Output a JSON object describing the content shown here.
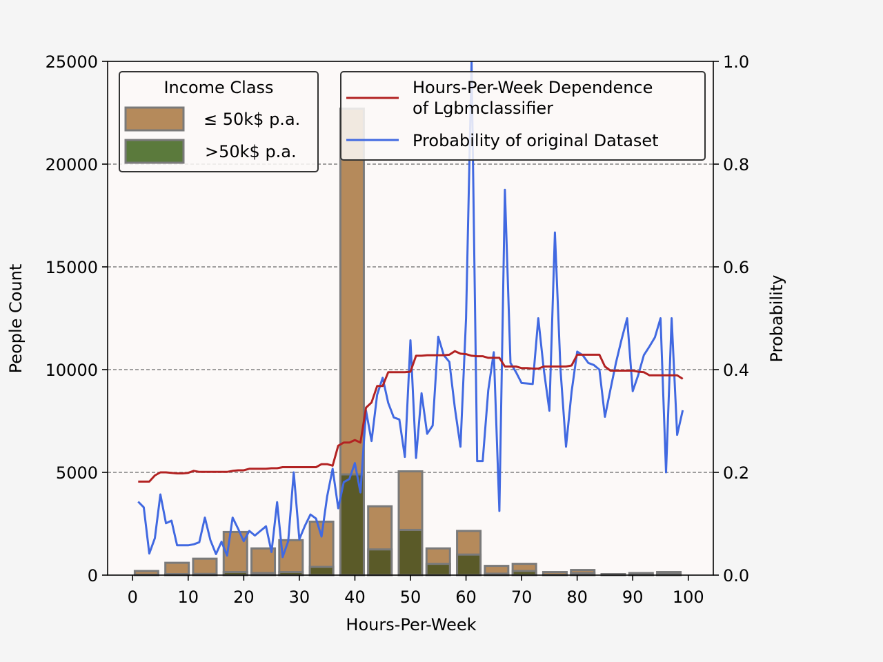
{
  "chart_data": {
    "type": "bar",
    "xlabel": "Hours-Per-Week",
    "ylabel": "People Count",
    "y2label": "Probability",
    "xlim": [
      -4.5,
      104.5
    ],
    "ylim": [
      0,
      25000
    ],
    "y2lim": [
      0,
      1.0
    ],
    "xticks": [
      0,
      10,
      20,
      30,
      40,
      50,
      60,
      70,
      80,
      90,
      100
    ],
    "yticks": [
      0,
      5000,
      10000,
      15000,
      20000,
      25000
    ],
    "y2ticks": [
      "0.0",
      "0.2",
      "0.4",
      "0.6",
      "0.8",
      "1.0"
    ],
    "grid": "horizontal dashed",
    "colors": {
      "le50k": "#b58a5b",
      "gt50k": "#5b7a3c",
      "overlap": "#5a5a28",
      "bar_edge": "#7a7a7a",
      "dependence_line": "#b22222",
      "probability_line": "#4169e1",
      "plot_bg": "#fcf9f8",
      "figure_bg": "#f5f5f5"
    },
    "bar_series": {
      "legend_title": "Income Class",
      "bin_centers": [
        2.5,
        8,
        13,
        18.5,
        23.5,
        28.5,
        34,
        39.5,
        44.5,
        50,
        55,
        60.5,
        65.5,
        70.5,
        76,
        81,
        86.5,
        91.5,
        96.5
      ],
      "series": [
        {
          "name": "≤ 50k$ p.a.",
          "values": [
            200,
            600,
            800,
            2100,
            1300,
            1700,
            2600,
            22700,
            3350,
            5050,
            1300,
            2150,
            450,
            550,
            150,
            250,
            50,
            100,
            150
          ]
        },
        {
          "name": ">50k$ p.a.",
          "values": [
            20,
            50,
            60,
            150,
            100,
            150,
            400,
            4900,
            1250,
            2200,
            550,
            1000,
            70,
            200,
            20,
            100,
            10,
            20,
            50
          ]
        }
      ]
    },
    "line_series": [
      {
        "name": "Hours-Per-Week Dependence\nof Lgbmclassifier",
        "x": [
          1,
          3,
          4,
          5,
          6,
          7,
          8,
          9,
          10,
          11,
          12,
          13,
          14,
          15,
          16,
          17,
          18,
          19,
          20,
          21,
          22,
          23,
          24,
          25,
          26,
          27,
          28,
          29,
          30,
          31,
          32,
          33,
          34,
          35,
          36,
          37,
          38,
          39,
          40,
          41,
          42,
          43,
          44,
          45,
          46,
          47,
          48,
          49,
          50,
          51,
          52,
          53,
          54,
          55,
          56,
          57,
          58,
          59,
          60,
          61,
          62,
          63,
          64,
          65,
          66,
          67,
          68,
          69,
          70,
          71,
          72,
          73,
          74,
          75,
          76,
          77,
          78,
          79,
          80,
          81,
          82,
          83,
          84,
          85,
          86,
          87,
          88,
          89,
          90,
          91,
          92,
          93,
          94,
          95,
          96,
          97,
          98,
          99
        ],
        "y": [
          0.182,
          0.182,
          0.194,
          0.2,
          0.2,
          0.199,
          0.198,
          0.198,
          0.199,
          0.203,
          0.201,
          0.201,
          0.201,
          0.201,
          0.201,
          0.201,
          0.203,
          0.204,
          0.204,
          0.207,
          0.207,
          0.207,
          0.207,
          0.208,
          0.208,
          0.21,
          0.21,
          0.21,
          0.21,
          0.21,
          0.21,
          0.21,
          0.216,
          0.216,
          0.213,
          0.252,
          0.258,
          0.258,
          0.263,
          0.258,
          0.326,
          0.336,
          0.368,
          0.368,
          0.395,
          0.395,
          0.395,
          0.395,
          0.396,
          0.427,
          0.427,
          0.428,
          0.428,
          0.428,
          0.428,
          0.429,
          0.436,
          0.431,
          0.43,
          0.427,
          0.426,
          0.426,
          0.423,
          0.423,
          0.423,
          0.406,
          0.406,
          0.406,
          0.403,
          0.403,
          0.402,
          0.402,
          0.406,
          0.406,
          0.406,
          0.406,
          0.406,
          0.408,
          0.429,
          0.429,
          0.429,
          0.429,
          0.429,
          0.406,
          0.398,
          0.398,
          0.398,
          0.398,
          0.398,
          0.396,
          0.395,
          0.389,
          0.389,
          0.389,
          0.389,
          0.389,
          0.389,
          0.382
        ]
      },
      {
        "name": "Probability of original Dataset",
        "x": [
          1,
          2,
          3,
          4,
          5,
          6,
          7,
          8,
          9,
          10,
          11,
          12,
          13,
          14,
          15,
          16,
          17,
          18,
          19,
          20,
          21,
          22,
          23,
          24,
          25,
          26,
          27,
          28,
          29,
          30,
          31,
          32,
          33,
          34,
          35,
          36,
          37,
          38,
          39,
          40,
          41,
          42,
          43,
          44,
          45,
          46,
          47,
          48,
          49,
          50,
          51,
          52,
          53,
          54,
          55,
          56,
          57,
          58,
          59,
          60,
          61,
          62,
          63,
          64,
          65,
          66,
          67,
          68,
          69,
          70,
          71,
          72,
          73,
          74,
          75,
          76,
          77,
          78,
          79,
          80,
          81,
          82,
          83,
          84,
          85,
          86,
          87,
          88,
          89,
          90,
          91,
          92,
          93,
          94,
          95,
          96,
          97,
          98,
          99
        ],
        "y": [
          0.143,
          0.132,
          0.042,
          0.072,
          0.157,
          0.101,
          0.106,
          0.058,
          0.058,
          0.058,
          0.06,
          0.064,
          0.112,
          0.068,
          0.041,
          0.065,
          0.038,
          0.112,
          0.09,
          0.066,
          0.086,
          0.077,
          0.086,
          0.095,
          0.045,
          0.142,
          0.035,
          0.066,
          0.2,
          0.07,
          0.096,
          0.118,
          0.11,
          0.075,
          0.153,
          0.207,
          0.13,
          0.181,
          0.187,
          0.218,
          0.161,
          0.32,
          0.261,
          0.351,
          0.384,
          0.335,
          0.307,
          0.303,
          0.23,
          0.457,
          0.228,
          0.354,
          0.275,
          0.291,
          0.464,
          0.428,
          0.415,
          0.325,
          0.25,
          0.5,
          1.0,
          0.222,
          0.222,
          0.36,
          0.434,
          0.125,
          0.75,
          0.413,
          0.395,
          0.374,
          0.373,
          0.372,
          0.5,
          0.4,
          0.32,
          0.667,
          0.4,
          0.25,
          0.357,
          0.435,
          0.428,
          0.413,
          0.409,
          0.4,
          0.308,
          0.362,
          0.414,
          0.459,
          0.5,
          0.358,
          0.39,
          0.428,
          0.445,
          0.463,
          0.5,
          0.2,
          0.5,
          0.273,
          0.321
        ]
      }
    ]
  }
}
